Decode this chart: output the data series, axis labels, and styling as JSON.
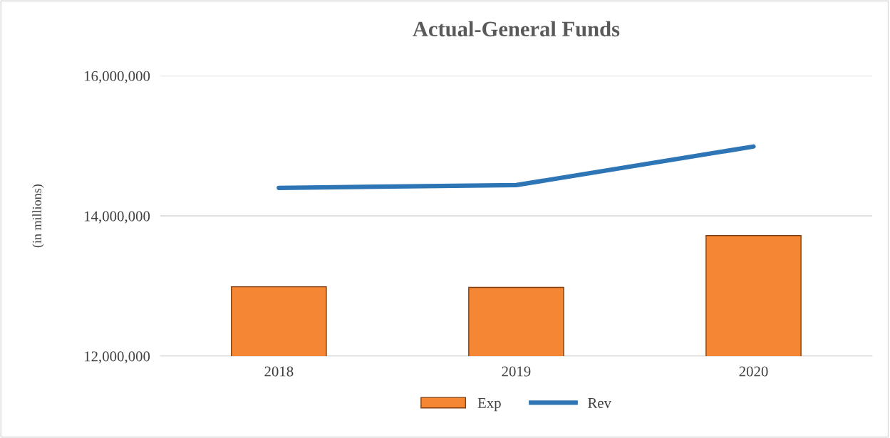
{
  "chart_data": {
    "type": "bar",
    "title": "Actual-General Funds",
    "ylabel": "(in millions)",
    "categories": [
      "2018",
      "2019",
      "2020"
    ],
    "series": [
      {
        "name": "Exp",
        "color": "#f58634",
        "values": [
          12990000,
          12980000,
          13720000
        ]
      },
      {
        "name": "Rev",
        "type": "line",
        "color": "#2e75b6",
        "values": [
          14400000,
          14440000,
          14990000
        ]
      }
    ],
    "ylim": [
      12000000,
      16000000
    ],
    "yticks": [
      {
        "value": 12000000,
        "label": "12,000,000"
      },
      {
        "value": 14000000,
        "label": "14,000,000"
      },
      {
        "value": 16000000,
        "label": "16,000,000"
      }
    ],
    "grid": "y",
    "legend": "bottom"
  }
}
